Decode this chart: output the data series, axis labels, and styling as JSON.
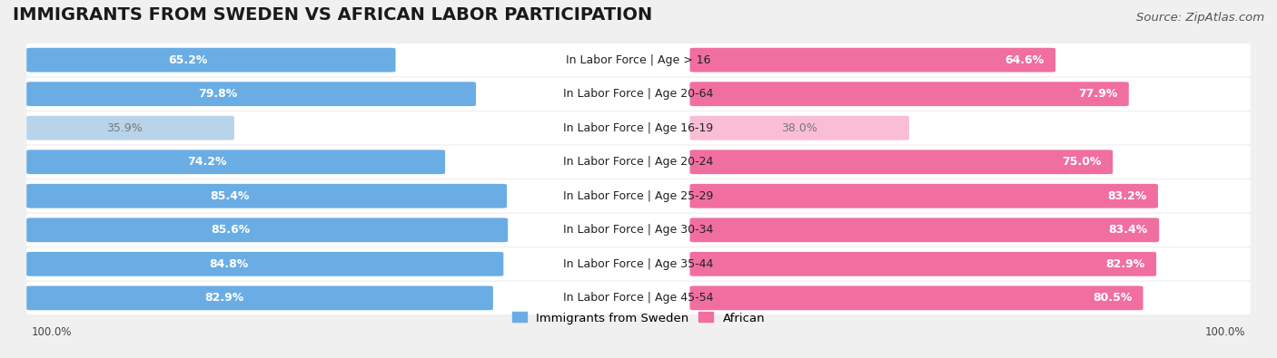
{
  "title": "IMMIGRANTS FROM SWEDEN VS AFRICAN LABOR PARTICIPATION",
  "source": "Source: ZipAtlas.com",
  "categories": [
    "In Labor Force | Age > 16",
    "In Labor Force | Age 20-64",
    "In Labor Force | Age 16-19",
    "In Labor Force | Age 20-24",
    "In Labor Force | Age 25-29",
    "In Labor Force | Age 30-34",
    "In Labor Force | Age 35-44",
    "In Labor Force | Age 45-54"
  ],
  "sweden_values": [
    65.2,
    79.8,
    35.9,
    74.2,
    85.4,
    85.6,
    84.8,
    82.9
  ],
  "african_values": [
    64.6,
    77.9,
    38.0,
    75.0,
    83.2,
    83.4,
    82.9,
    80.5
  ],
  "sweden_color": "#6aade4",
  "african_color": "#f06fa0",
  "sweden_color_light": "#b8d4ea",
  "african_color_light": "#f9bdd4",
  "background_color": "#f0f0f0",
  "row_bg_color": "#e8e8e8",
  "max_value": 100.0,
  "legend_sweden": "Immigrants from Sweden",
  "legend_african": "African",
  "title_fontsize": 14,
  "source_fontsize": 9.5,
  "bar_label_fontsize": 9,
  "category_fontsize": 9,
  "legend_fontsize": 9.5,
  "bottom_label": "100.0%"
}
